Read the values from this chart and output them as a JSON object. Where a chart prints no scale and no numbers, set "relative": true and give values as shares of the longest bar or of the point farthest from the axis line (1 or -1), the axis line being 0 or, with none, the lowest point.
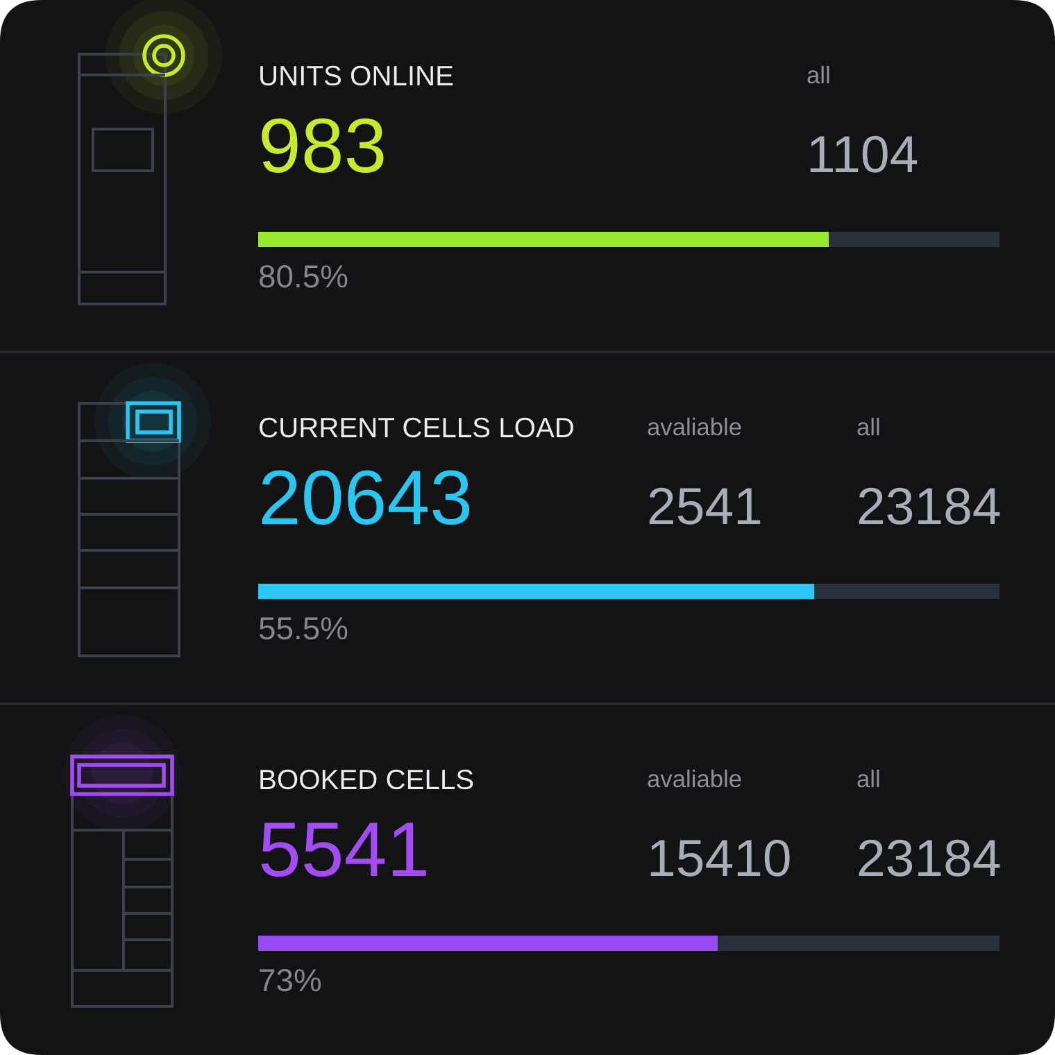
{
  "chart_data": [
    {
      "type": "bar",
      "orientation": "horizontal",
      "stacked": true,
      "relative": true,
      "title": "UNITS ONLINE",
      "categories": [
        null
      ],
      "series": [
        {
          "color": "#97e82e",
          "values": [
            0.77
          ]
        },
        {
          "color": "#2a303c",
          "values": [
            0.23
          ]
        }
      ],
      "annotations": [
        "983",
        "all",
        "1104",
        "80.5%"
      ]
    },
    {
      "type": "bar",
      "orientation": "horizontal",
      "stacked": true,
      "relative": true,
      "title": "CURRENT CELLS LOAD",
      "categories": [
        null
      ],
      "series": [
        {
          "color": "#27c9f6",
          "values": [
            0.75
          ]
        },
        {
          "color": "#2a303c",
          "values": [
            0.25
          ]
        }
      ],
      "annotations": [
        "20643",
        "avaliable",
        "2541",
        "all",
        "23184",
        "55.5%"
      ]
    },
    {
      "type": "bar",
      "orientation": "horizontal",
      "stacked": true,
      "relative": true,
      "title": "BOOKED CELLS",
      "categories": [
        null
      ],
      "series": [
        {
          "color": "#984bf3",
          "values": [
            0.62
          ]
        },
        {
          "color": "#2a303c",
          "values": [
            0.38
          ]
        }
      ],
      "annotations": [
        "5541",
        "avaliable",
        "15410",
        "all",
        "23184",
        "73%"
      ]
    }
  ]
}
